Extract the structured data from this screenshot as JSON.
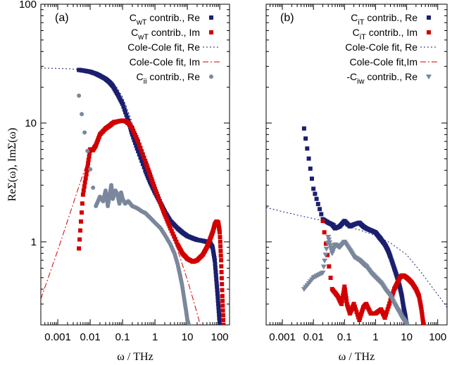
{
  "colors": {
    "navy": "#1a1f6e",
    "red": "#d10000",
    "slate": "#7a879c",
    "frame": "#000000"
  },
  "chart_data": [
    {
      "type": "scatter",
      "panel_label": "(a)",
      "xlabel": "ω / THz",
      "ylabel": "ReΣ(ω), ImΣ(ω)",
      "xscale": "log",
      "yscale": "log",
      "xlim": [
        0.0003,
        200
      ],
      "ylim": [
        0.2,
        100
      ],
      "x_ticks": [
        "0.001",
        "0.01",
        "0.1",
        "1",
        "10",
        "100"
      ],
      "y_ticks": [
        "1",
        "10",
        "100"
      ],
      "legend_position": "top-right",
      "series": [
        {
          "name": "C_wT contrib., Re",
          "label_main": "C",
          "label_sub": "wT",
          "label_rest": " contrib., Re",
          "marker": "square",
          "color": "#1a1f6e",
          "x": [
            0.0045,
            0.007,
            0.01,
            0.015,
            0.02,
            0.03,
            0.04,
            0.05,
            0.07,
            0.1,
            0.15,
            0.2,
            0.3,
            0.5,
            0.7,
            1,
            1.5,
            2,
            3,
            5,
            7,
            10,
            15,
            20,
            30,
            40,
            50,
            60,
            70,
            80,
            90,
            100
          ],
          "y": [
            28,
            27.5,
            27,
            26,
            25,
            23.5,
            22,
            20.5,
            17.5,
            14.5,
            10.5,
            8,
            5.8,
            4,
            3.2,
            2.6,
            2.1,
            1.8,
            1.5,
            1.3,
            1.2,
            1.12,
            1.07,
            1.04,
            1.02,
            1.0,
            0.98,
            0.9,
            0.7,
            0.45,
            0.3,
            0.2
          ]
        },
        {
          "name": "C_wT contrib., Im",
          "label_main": "C",
          "label_sub": "wT",
          "label_rest": " contrib., Im",
          "marker": "square",
          "color": "#d10000",
          "x": [
            0.0045,
            0.006,
            0.008,
            0.01,
            0.012,
            0.015,
            0.02,
            0.03,
            0.04,
            0.05,
            0.07,
            0.1,
            0.13,
            0.15,
            0.2,
            0.3,
            0.5,
            0.7,
            1,
            1.5,
            2,
            3,
            5,
            7,
            10,
            15,
            20,
            30,
            40,
            50,
            60,
            70,
            80,
            90,
            100,
            110,
            120,
            130
          ],
          "y": [
            0.88,
            2.5,
            4,
            6,
            5.9,
            6.5,
            8,
            9,
            9.5,
            10,
            10.3,
            10.5,
            10.3,
            10,
            9,
            7,
            4.8,
            3.7,
            2.8,
            2.1,
            1.7,
            1.3,
            0.95,
            0.8,
            0.72,
            0.68,
            0.7,
            0.78,
            0.9,
            1.05,
            1.2,
            1.4,
            1.48,
            1.45,
            1.2,
            0.7,
            0.35,
            0.2
          ]
        },
        {
          "name": "Cole-Cole fit, Re",
          "marker": "dotted-line",
          "color": "#1a1f6e",
          "x": [
            0.0003,
            0.001,
            0.002,
            0.005,
            0.01,
            0.02,
            0.03,
            0.05,
            0.07,
            0.1,
            0.15,
            0.2,
            0.3,
            0.5,
            0.7,
            1,
            1.5,
            2,
            3
          ],
          "y": [
            29,
            28.8,
            28.6,
            28.2,
            27.4,
            26,
            24.5,
            22,
            19.5,
            16.5,
            12.5,
            10,
            7.2,
            4.8,
            3.8,
            3.0,
            2.3,
            1.95,
            1.6
          ]
        },
        {
          "name": "Cole-Cole fit, Im",
          "marker": "dashdot-line",
          "color": "#d10000",
          "x": [
            0.0003,
            0.001,
            0.002,
            0.005,
            0.01,
            0.02,
            0.05,
            0.1,
            0.2,
            0.5,
            1,
            2,
            5,
            10,
            15,
            20,
            25
          ],
          "y": [
            0.33,
            0.85,
            1.5,
            3.2,
            5.5,
            8.3,
            10.6,
            10.6,
            8.8,
            5.2,
            3.0,
            1.75,
            0.85,
            0.48,
            0.33,
            0.25,
            0.2
          ]
        },
        {
          "name": "C_ii contrib., Re",
          "label_main": "C",
          "label_sub": "ii",
          "label_rest": " contrib., Re",
          "marker": "circle",
          "color": "#7a879c",
          "x": [
            0.0045,
            0.015,
            0.02,
            0.025,
            0.03,
            0.035,
            0.04,
            0.045,
            0.05,
            0.06,
            0.07,
            0.08,
            0.09,
            0.1,
            0.12,
            0.15,
            0.2,
            0.25,
            0.3,
            0.4,
            0.5,
            0.7,
            1,
            1.5,
            2,
            3,
            4,
            5,
            6,
            7,
            8,
            9,
            10,
            11
          ],
          "y": [
            17,
            2.0,
            2.4,
            2.2,
            2.7,
            2.0,
            2.5,
            3.0,
            2.3,
            2.7,
            2.5,
            2.1,
            2.6,
            2.3,
            2.1,
            2.2,
            2.0,
            1.95,
            1.9,
            1.8,
            1.75,
            1.6,
            1.45,
            1.3,
            1.15,
            0.95,
            0.8,
            0.65,
            0.52,
            0.42,
            0.33,
            0.27,
            0.22,
            0.2
          ]
        }
      ]
    },
    {
      "type": "scatter",
      "panel_label": "(b)",
      "xlabel": "ω / THz",
      "xscale": "log",
      "yscale": "log",
      "xlim": [
        0.0003,
        200
      ],
      "ylim": [
        0.2,
        100
      ],
      "x_ticks": [
        "0.001",
        "0.01",
        "0.1",
        "1",
        "10",
        "100"
      ],
      "legend_position": "top-right",
      "series": [
        {
          "name": "C_iT contrib., Re",
          "label_main": "C",
          "label_sub": "iT",
          "label_rest": " contrib., Re",
          "marker": "square",
          "color": "#1a1f6e",
          "x": [
            0.005,
            0.01,
            0.02,
            0.03,
            0.04,
            0.05,
            0.07,
            0.1,
            0.15,
            0.2,
            0.3,
            0.4,
            0.5,
            0.7,
            1,
            1.3,
            1.5,
            2,
            2.5,
            3,
            4,
            5,
            6,
            7,
            8,
            9,
            10
          ],
          "y": [
            9,
            2.8,
            1.55,
            1.45,
            1.4,
            1.3,
            1.35,
            1.5,
            1.35,
            1.4,
            1.45,
            1.35,
            1.3,
            1.25,
            1.2,
            1.1,
            1.05,
            0.95,
            0.85,
            0.75,
            0.6,
            0.5,
            0.42,
            0.35,
            0.28,
            0.24,
            0.2
          ]
        },
        {
          "name": "C_iT contrib., Im",
          "label_main": "C",
          "label_sub": "iT",
          "label_rest": " contrib., Im",
          "marker": "square",
          "color": "#d10000",
          "x": [
            0.02,
            0.04,
            0.06,
            0.08,
            0.1,
            0.12,
            0.15,
            0.2,
            0.3,
            0.4,
            0.5,
            0.7,
            1,
            1.5,
            2,
            3,
            4,
            5,
            6,
            7,
            8,
            10,
            12,
            15,
            20,
            25,
            30,
            35
          ],
          "y": [
            1.5,
            0.4,
            0.35,
            0.3,
            0.42,
            0.3,
            0.25,
            0.3,
            0.22,
            0.28,
            0.3,
            0.25,
            0.25,
            0.27,
            0.23,
            0.32,
            0.4,
            0.45,
            0.5,
            0.52,
            0.52,
            0.5,
            0.48,
            0.45,
            0.4,
            0.35,
            0.27,
            0.2
          ]
        },
        {
          "name": "Cole-Cole fit, Re",
          "marker": "dotted-line",
          "color": "#1a1f6e",
          "x": [
            0.0003,
            0.001,
            0.003,
            0.01,
            0.03,
            0.1,
            0.3,
            1,
            3,
            10,
            30,
            100,
            200
          ],
          "y": [
            1.95,
            1.8,
            1.68,
            1.57,
            1.47,
            1.37,
            1.26,
            1.13,
            0.98,
            0.78,
            0.55,
            0.36,
            0.28
          ]
        },
        {
          "name": "Cole-Cole fit,Im",
          "marker": "dashdot-line",
          "color": "#d10000",
          "x": [],
          "y": []
        },
        {
          "name": "-C_iw contrib., Re",
          "label_main": "-C",
          "label_sub": "iw",
          "label_rest": " contrib., Re",
          "marker": "triangle-down",
          "color": "#7a879c",
          "x": [
            0.005,
            0.01,
            0.02,
            0.03,
            0.04,
            0.05,
            0.07,
            0.1,
            0.15,
            0.2,
            0.3,
            0.4,
            0.5,
            0.7,
            1,
            1.5,
            2,
            3,
            4,
            5,
            6,
            7,
            8,
            9,
            10
          ],
          "y": [
            0.4,
            0.5,
            0.55,
            1.1,
            0.8,
            0.95,
            0.9,
            1.0,
            0.85,
            0.75,
            0.7,
            0.65,
            0.62,
            0.55,
            0.5,
            0.45,
            0.4,
            0.35,
            0.3,
            0.27,
            0.25,
            0.23,
            0.22,
            0.21,
            0.2
          ]
        }
      ]
    }
  ]
}
